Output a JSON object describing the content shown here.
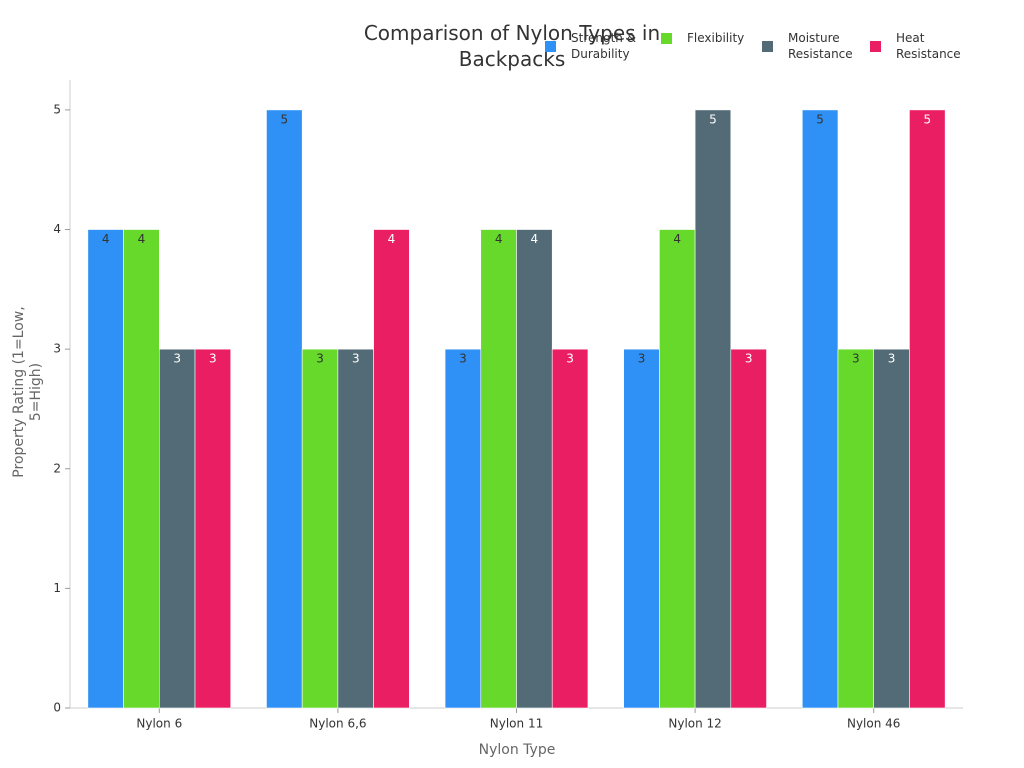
{
  "chart_data": {
    "type": "bar",
    "title": "Comparison of Nylon Types in Backpacks",
    "x_label": "Nylon Type",
    "y_label": "Property Rating (1=Low, 5=High)",
    "categories": [
      "Nylon 6",
      "Nylon 6,6",
      "Nylon 11",
      "Nylon 12",
      "Nylon 46"
    ],
    "series": [
      {
        "name": "Strength & Durability",
        "color": "#2f91f5",
        "values": [
          4,
          5,
          3,
          3,
          5
        ]
      },
      {
        "name": "Flexibility",
        "color": "#66d92a",
        "values": [
          4,
          3,
          4,
          4,
          3
        ]
      },
      {
        "name": "Moisture Resistance",
        "color": "#536b76",
        "values": [
          3,
          3,
          4,
          5,
          3
        ]
      },
      {
        "name": "Heat Resistance",
        "color": "#e91e63",
        "values": [
          3,
          4,
          3,
          3,
          5
        ]
      }
    ],
    "ylim": [
      0,
      5.25
    ],
    "yticks": [
      0,
      1,
      2,
      3,
      4,
      5
    ],
    "grid": false,
    "legend": "top-right"
  }
}
